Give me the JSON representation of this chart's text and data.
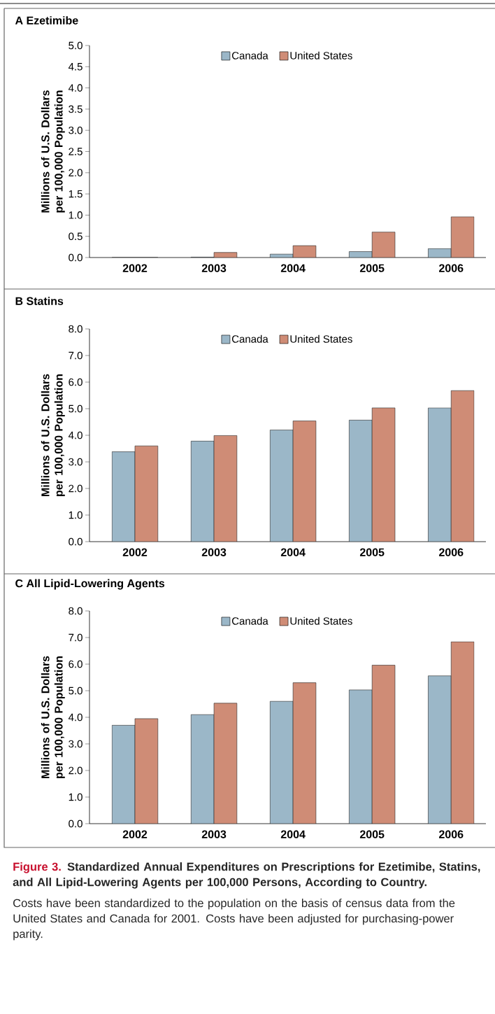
{
  "chart_data": [
    {
      "type": "bar",
      "title": "A  Ezetimibe",
      "ylabel": "Millions of U.S. Dollars per 100,000 Population",
      "categories": [
        "2002",
        "2003",
        "2004",
        "2005",
        "2006"
      ],
      "series": [
        {
          "name": "Canada",
          "color": "#9bb7c8",
          "values": [
            0,
            0.01,
            0.08,
            0.14,
            0.21
          ]
        },
        {
          "name": "United States",
          "color": "#cf8c76",
          "values": [
            0,
            0.12,
            0.28,
            0.6,
            0.96
          ]
        }
      ],
      "ylim": [
        0,
        5
      ],
      "yticks": [
        {
          "value": 0,
          "label": "0.0"
        },
        0.5,
        {
          "value": 1,
          "label": "1.0"
        },
        1.5,
        {
          "value": 2,
          "label": "2.0"
        },
        2.5,
        {
          "value": 3,
          "label": "3.0"
        },
        3.5,
        {
          "value": 4,
          "label": "4.0"
        },
        4.5,
        {
          "value": 5,
          "label": "5.0"
        }
      ],
      "legend": "top"
    },
    {
      "type": "bar",
      "title": "B  Statins",
      "ylabel": "Millions of U.S. Dollars per 100,000 Population",
      "categories": [
        "2002",
        "2003",
        "2004",
        "2005",
        "2006"
      ],
      "series": [
        {
          "name": "Canada",
          "color": "#9bb7c8",
          "values": [
            3.38,
            3.78,
            4.2,
            4.57,
            5.03
          ]
        },
        {
          "name": "United States",
          "color": "#cf8c76",
          "values": [
            3.6,
            3.99,
            4.54,
            5.03,
            5.68
          ]
        }
      ],
      "ylim": [
        0,
        8
      ],
      "yticks": [
        {
          "value": 0,
          "label": "0.0"
        },
        {
          "value": 1,
          "label": "1.0"
        },
        {
          "value": 2,
          "label": "2.0"
        },
        {
          "value": 3,
          "label": "3.0"
        },
        {
          "value": 4,
          "label": "4.0"
        },
        {
          "value": 5,
          "label": "5.0"
        },
        {
          "value": 6,
          "label": "6.0"
        },
        {
          "value": 7,
          "label": "7.0"
        },
        {
          "value": 8,
          "label": "8.0"
        }
      ],
      "legend": "top"
    },
    {
      "type": "bar",
      "title": "C  All Lipid-Lowering Agents",
      "ylabel": "Millions of U.S. Dollars per 100,000 Population",
      "categories": [
        "2002",
        "2003",
        "2004",
        "2005",
        "2006"
      ],
      "series": [
        {
          "name": "Canada",
          "color": "#9bb7c8",
          "values": [
            3.7,
            4.1,
            4.6,
            5.03,
            5.56
          ]
        },
        {
          "name": "United States",
          "color": "#cf8c76",
          "values": [
            3.95,
            4.53,
            5.3,
            5.96,
            6.84
          ]
        }
      ],
      "ylim": [
        0,
        8
      ],
      "yticks": [
        {
          "value": 0,
          "label": "0.0"
        },
        {
          "value": 1,
          "label": "1.0"
        },
        {
          "value": 2,
          "label": "2.0"
        },
        {
          "value": 3,
          "label": "3.0"
        },
        {
          "value": 4,
          "label": "4.0"
        },
        {
          "value": 5,
          "label": "5.0"
        },
        {
          "value": 6,
          "label": "6.0"
        },
        {
          "value": 7,
          "label": "7.0"
        },
        {
          "value": 8,
          "label": "8.0"
        }
      ],
      "legend": "top",
      "annotations": [
        "Figure 3.",
        "Standardized Annual Expenditures on Prescriptions for Ezetimibe, Statins, and All Lipid-Lowering Agents per 100,000 Persons, According to Country.",
        "Costs have been standardized to the population on the basis of census data from the United States and Canada for 2001. Costs have been adjusted for purchasing-power parity."
      ]
    }
  ]
}
